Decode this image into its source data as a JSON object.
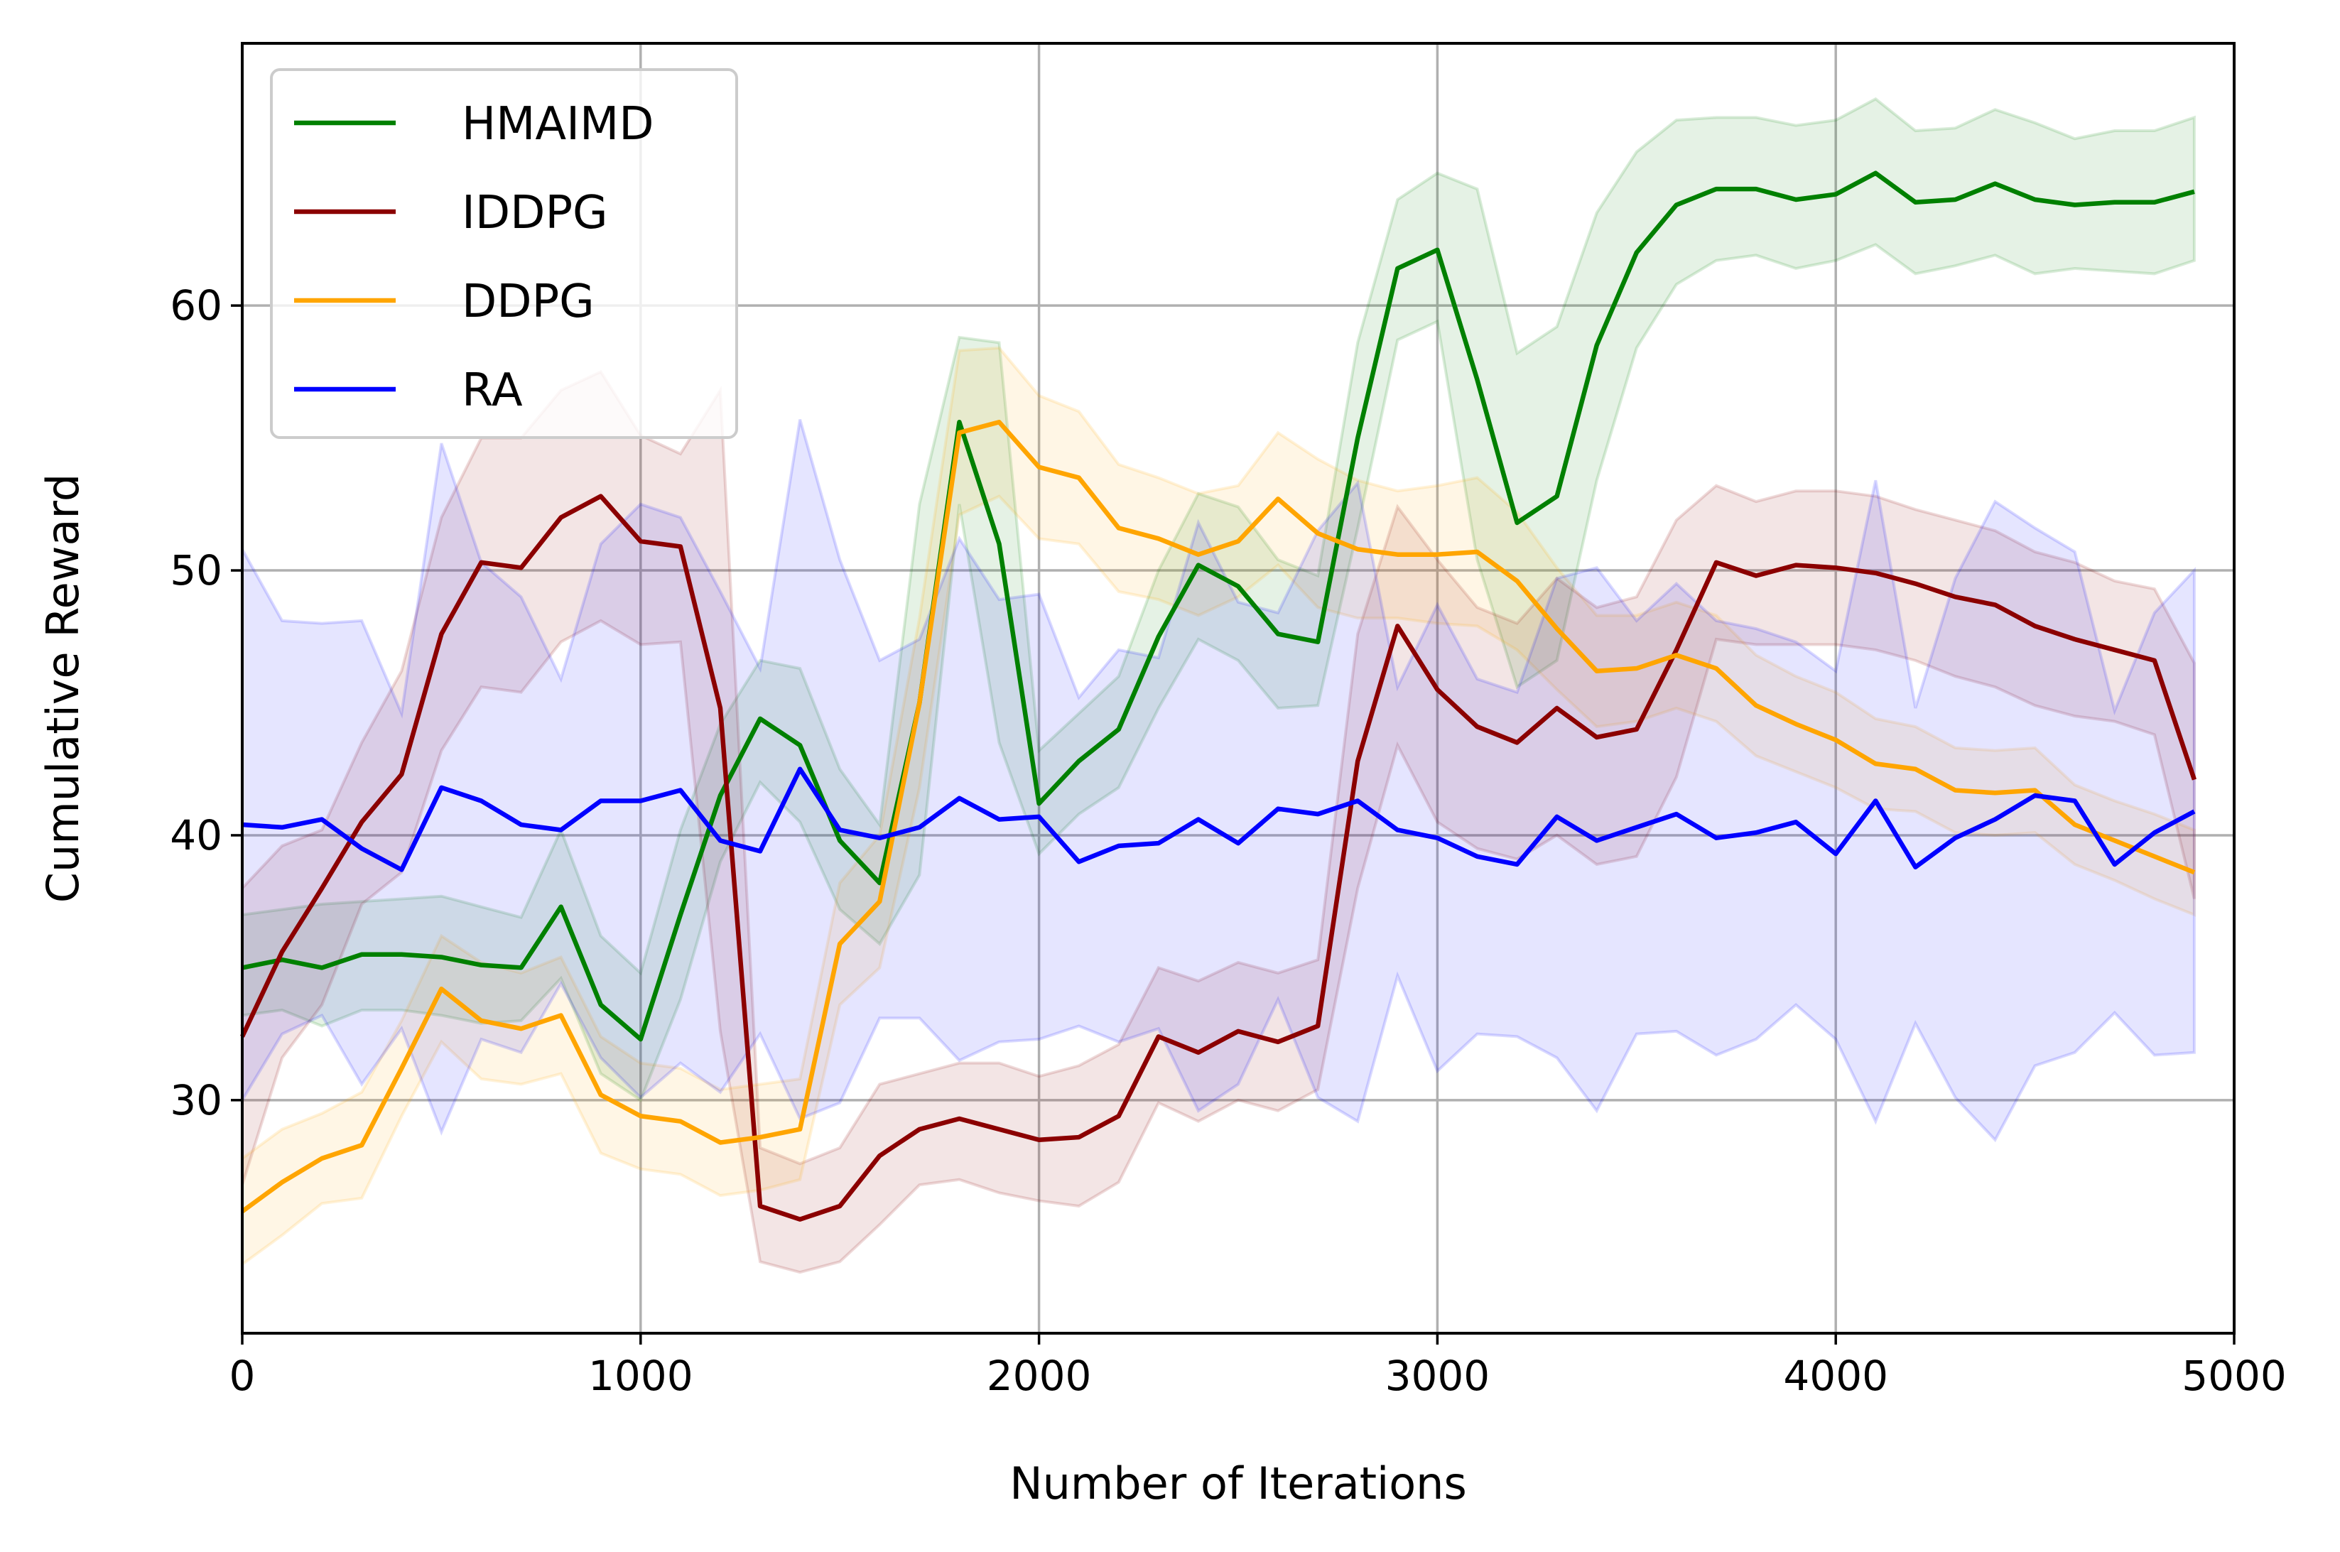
{
  "chart_data": {
    "type": "line",
    "title": "",
    "xlabel": "Number of Iterations",
    "ylabel": "Cumulative Reward",
    "xlim": [
      0,
      5000
    ],
    "ylim": [
      21.2,
      69.9
    ],
    "xticks": [
      0,
      1000,
      2000,
      3000,
      4000,
      5000
    ],
    "yticks": [
      30,
      40,
      50,
      60
    ],
    "xtick_labels": [
      "0",
      "1000",
      "2000",
      "3000",
      "4000",
      "5000"
    ],
    "ytick_labels": [
      "30",
      "40",
      "50",
      "60"
    ],
    "grid": true,
    "legend_position": "upper-left",
    "shaded_band": "min-max range around each series",
    "x": [
      0,
      100,
      200,
      300,
      400,
      500,
      600,
      700,
      800,
      900,
      1000,
      1100,
      1200,
      1300,
      1400,
      1500,
      1600,
      1700,
      1800,
      1900,
      2000,
      2100,
      2200,
      2300,
      2400,
      2500,
      2600,
      2700,
      2800,
      2900,
      3000,
      3100,
      3200,
      3300,
      3400,
      3500,
      3600,
      3700,
      3800,
      3900,
      4000,
      4100,
      4200,
      4300,
      4400,
      4500,
      4600,
      4700,
      4800,
      4900
    ],
    "series": [
      {
        "name": "HMAIMD",
        "color": "#008000",
        "values": [
          35.0,
          35.3,
          35.0,
          35.5,
          35.5,
          35.4,
          35.1,
          35.0,
          37.3,
          33.6,
          32.3,
          37.0,
          41.5,
          44.4,
          43.4,
          39.8,
          38.2,
          45.0,
          55.6,
          51.0,
          41.2,
          42.8,
          44.0,
          47.5,
          50.2,
          49.4,
          47.6,
          47.3,
          55.0,
          61.4,
          62.1,
          57.2,
          51.8,
          52.8,
          58.5,
          62.0,
          63.8,
          64.4,
          64.4,
          64.0,
          64.2,
          65.0,
          63.9,
          64.0,
          64.6,
          64.0,
          63.8,
          63.9,
          63.9,
          64.3
        ],
        "upper": [
          37.0,
          37.2,
          37.4,
          37.5,
          37.6,
          37.7,
          37.3,
          36.9,
          40.2,
          36.2,
          34.8,
          40.2,
          44.2,
          46.6,
          46.3,
          42.5,
          40.4,
          52.5,
          58.8,
          58.6,
          43.2,
          44.6,
          46.0,
          50.0,
          52.9,
          52.4,
          50.4,
          49.8,
          58.6,
          64.0,
          65.0,
          64.4,
          58.2,
          59.2,
          63.5,
          65.8,
          67.0,
          67.1,
          67.1,
          66.8,
          67.0,
          67.8,
          66.6,
          66.7,
          67.4,
          66.9,
          66.3,
          66.6,
          66.6,
          67.1
        ],
        "lower": [
          33.2,
          33.4,
          32.8,
          33.4,
          33.4,
          33.2,
          32.9,
          33.0,
          34.6,
          31.0,
          30.0,
          33.8,
          39.0,
          42.0,
          40.5,
          37.2,
          35.9,
          38.5,
          52.5,
          43.5,
          39.3,
          40.8,
          41.8,
          44.8,
          47.4,
          46.6,
          44.8,
          44.9,
          51.6,
          58.7,
          59.4,
          50.4,
          45.6,
          46.6,
          53.4,
          58.4,
          60.8,
          61.7,
          61.9,
          61.4,
          61.7,
          62.3,
          61.2,
          61.5,
          61.9,
          61.2,
          61.4,
          61.3,
          61.2,
          61.7
        ]
      },
      {
        "name": "IDDPG",
        "color": "#8b0000",
        "values": [
          32.4,
          35.6,
          38.0,
          40.5,
          42.3,
          47.6,
          50.3,
          50.1,
          52.0,
          52.8,
          51.1,
          50.9,
          44.8,
          26.0,
          25.5,
          26.0,
          27.9,
          28.9,
          29.3,
          28.9,
          28.5,
          28.6,
          29.4,
          32.4,
          31.8,
          32.6,
          32.2,
          32.8,
          42.8,
          47.9,
          45.5,
          44.1,
          43.5,
          44.8,
          43.7,
          44.0,
          47.0,
          50.3,
          49.8,
          50.2,
          50.1,
          49.9,
          49.5,
          49.0,
          48.7,
          47.9,
          47.4,
          47.0,
          46.6,
          42.1
        ],
        "upper": [
          38.0,
          39.6,
          40.2,
          43.5,
          46.2,
          52.0,
          55.0,
          55.0,
          56.8,
          57.5,
          55.1,
          54.4,
          56.8,
          28.2,
          27.6,
          28.2,
          30.6,
          31.0,
          31.4,
          31.4,
          30.9,
          31.3,
          32.1,
          35.0,
          34.5,
          35.2,
          34.8,
          35.3,
          47.6,
          52.4,
          50.4,
          48.6,
          48.0,
          49.7,
          48.6,
          49.0,
          51.9,
          53.2,
          52.6,
          53.0,
          53.0,
          52.8,
          52.3,
          51.9,
          51.5,
          50.7,
          50.3,
          49.6,
          49.3,
          46.5
        ],
        "lower": [
          26.8,
          31.6,
          33.6,
          37.4,
          38.6,
          43.2,
          45.6,
          45.4,
          47.3,
          48.1,
          47.2,
          47.3,
          32.6,
          23.9,
          23.5,
          23.9,
          25.3,
          26.8,
          27.0,
          26.5,
          26.2,
          26.0,
          26.9,
          29.9,
          29.2,
          30.0,
          29.6,
          30.4,
          38.0,
          43.4,
          40.5,
          39.5,
          39.1,
          40.0,
          38.9,
          39.2,
          42.2,
          47.4,
          47.2,
          47.2,
          47.2,
          47.0,
          46.6,
          46.0,
          45.6,
          44.9,
          44.5,
          44.3,
          43.8,
          37.6
        ]
      },
      {
        "name": "DDPG",
        "color": "#ffa500",
        "values": [
          25.8,
          26.9,
          27.8,
          28.3,
          31.2,
          34.2,
          33.0,
          32.7,
          33.2,
          30.2,
          29.4,
          29.2,
          28.4,
          28.6,
          28.9,
          35.9,
          37.5,
          45.0,
          55.2,
          55.6,
          53.9,
          53.5,
          51.6,
          51.2,
          50.6,
          51.1,
          52.7,
          51.4,
          50.8,
          50.6,
          50.6,
          50.7,
          49.6,
          47.8,
          46.2,
          46.3,
          46.8,
          46.3,
          44.9,
          44.2,
          43.6,
          42.7,
          42.5,
          41.7,
          41.6,
          41.7,
          40.4,
          39.8,
          39.2,
          38.6
        ],
        "upper": [
          27.8,
          28.9,
          29.5,
          30.3,
          33.0,
          36.2,
          35.2,
          34.8,
          35.4,
          32.4,
          31.4,
          31.2,
          30.4,
          30.6,
          30.8,
          38.2,
          40.0,
          48.2,
          58.3,
          58.4,
          56.6,
          56.0,
          54.0,
          53.5,
          52.9,
          53.2,
          55.2,
          54.2,
          53.4,
          53.0,
          53.2,
          53.5,
          52.2,
          50.1,
          48.3,
          48.3,
          48.8,
          48.3,
          46.8,
          46.0,
          45.4,
          44.4,
          44.1,
          43.3,
          43.2,
          43.3,
          41.9,
          41.3,
          40.8,
          40.2
        ],
        "lower": [
          23.8,
          24.9,
          26.1,
          26.3,
          29.4,
          32.2,
          30.8,
          30.6,
          31.0,
          28.0,
          27.4,
          27.2,
          26.4,
          26.6,
          27.0,
          33.6,
          35.0,
          41.8,
          52.1,
          52.8,
          51.2,
          51.0,
          49.2,
          48.9,
          48.3,
          49.0,
          50.2,
          48.6,
          48.2,
          48.2,
          48.0,
          47.9,
          47.0,
          45.5,
          44.1,
          44.3,
          44.8,
          44.3,
          43.0,
          42.4,
          41.8,
          41.0,
          40.9,
          40.1,
          40.0,
          40.1,
          38.9,
          38.3,
          37.6,
          37.0
        ]
      },
      {
        "name": "RA",
        "color": "#0000ff",
        "values": [
          40.4,
          40.3,
          40.6,
          39.5,
          38.7,
          41.8,
          41.3,
          40.4,
          40.2,
          41.3,
          41.3,
          41.7,
          39.8,
          39.4,
          42.5,
          40.2,
          39.9,
          40.3,
          41.4,
          40.6,
          40.7,
          39.0,
          39.6,
          39.7,
          40.6,
          39.7,
          41.0,
          40.8,
          41.3,
          40.2,
          39.9,
          39.2,
          38.9,
          40.7,
          39.8,
          40.3,
          40.8,
          39.9,
          40.1,
          40.5,
          39.3,
          41.3,
          38.8,
          39.9,
          40.6,
          41.5,
          41.3,
          38.9,
          40.1,
          40.9
        ],
        "upper": [
          50.8,
          48.1,
          48.0,
          48.1,
          44.6,
          54.8,
          50.3,
          49.0,
          45.9,
          51.0,
          52.5,
          52.0,
          49.2,
          46.3,
          55.7,
          50.4,
          46.6,
          47.4,
          51.2,
          48.9,
          49.1,
          45.2,
          47.0,
          46.7,
          51.8,
          48.8,
          48.4,
          51.5,
          53.3,
          45.6,
          48.7,
          45.9,
          45.4,
          49.7,
          50.1,
          48.1,
          49.5,
          48.1,
          47.8,
          47.3,
          46.2,
          53.4,
          44.8,
          49.7,
          52.6,
          51.6,
          50.7,
          44.7,
          48.4,
          50.0
        ],
        "lower": [
          30.0,
          32.5,
          33.2,
          30.6,
          32.7,
          28.8,
          32.3,
          31.8,
          34.4,
          31.6,
          30.1,
          31.4,
          30.3,
          32.5,
          29.3,
          29.9,
          33.1,
          33.1,
          31.5,
          32.2,
          32.3,
          32.8,
          32.2,
          32.7,
          29.6,
          30.6,
          33.8,
          30.1,
          29.2,
          34.7,
          31.1,
          32.5,
          32.4,
          31.6,
          29.6,
          32.5,
          32.6,
          31.7,
          32.3,
          33.6,
          32.3,
          29.2,
          32.9,
          30.1,
          28.5,
          31.3,
          31.8,
          33.3,
          31.7,
          31.8
        ]
      }
    ]
  }
}
